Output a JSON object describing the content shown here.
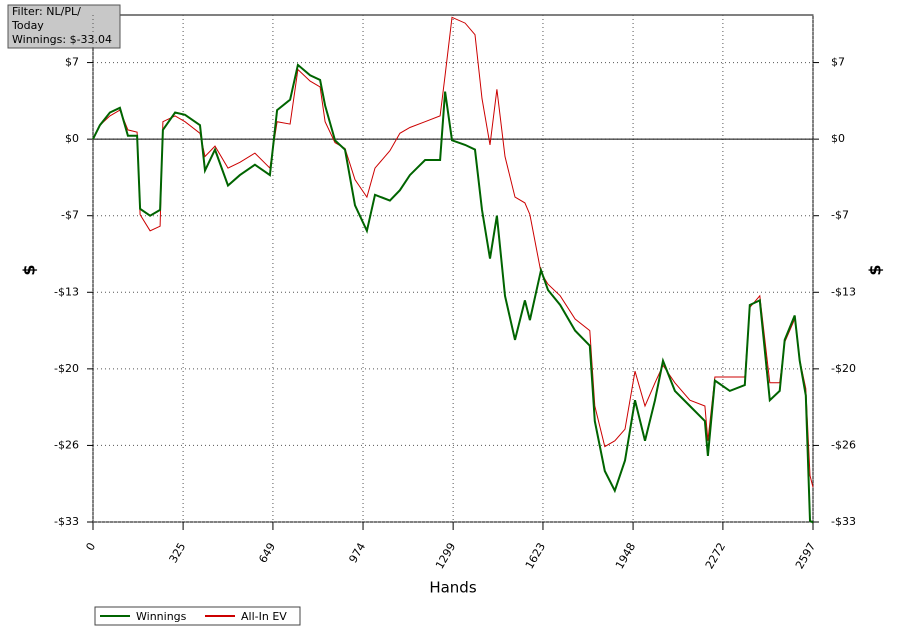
{
  "chart_data": {
    "type": "line",
    "annotations": [
      "Filter: NL/PL/",
      "Today",
      "Winnings: $-33.04"
    ],
    "xlabel": "Hands",
    "ylabel": "$",
    "x": [
      0,
      25,
      61,
      97,
      126,
      159,
      170,
      206,
      242,
      252,
      296,
      332,
      386,
      404,
      440,
      487,
      530,
      584,
      638,
      664,
      711,
      739,
      783,
      819,
      837,
      873,
      909,
      945,
      988,
      1017,
      1071,
      1107,
      1143,
      1198,
      1252,
      1270,
      1295,
      1342,
      1378,
      1403,
      1432,
      1457,
      1486,
      1522,
      1558,
      1576,
      1616,
      1641,
      1685,
      1739,
      1792,
      1810,
      1846,
      1882,
      1919,
      1955,
      1991,
      2027,
      2056,
      2099,
      2153,
      2207,
      2218,
      2243,
      2297,
      2351,
      2369,
      2405,
      2441,
      2477,
      2495,
      2531,
      2549,
      2571,
      2586,
      2597
    ],
    "series": [
      {
        "name": "Winnings",
        "color": "#006400",
        "values": [
          0,
          1.2,
          2.3,
          2.7,
          0.3,
          0.3,
          -6,
          -6.6,
          -6.1,
          0.8,
          2.3,
          2.1,
          1.2,
          -2.7,
          -0.9,
          -4,
          -3.1,
          -2.2,
          -3.1,
          2.5,
          3.4,
          6.4,
          5.5,
          5.1,
          2.9,
          -0.1,
          -0.9,
          -5.7,
          -7.9,
          -4.8,
          -5.3,
          -4.4,
          -3.1,
          -1.8,
          -1.8,
          4.1,
          -0.1,
          -0.5,
          -0.9,
          -6.1,
          -10.3,
          -6.6,
          -13.5,
          -17.3,
          -13.9,
          -15.6,
          -11.3,
          -13,
          -14.3,
          -16.5,
          -17.8,
          -24.3,
          -28.6,
          -30.3,
          -27.7,
          -22.5,
          -26,
          -22.5,
          -19.1,
          -21.7,
          -23,
          -24.3,
          -27.3,
          -20.8,
          -21.7,
          -21.2,
          -14.3,
          -13.9,
          -22.5,
          -21.7,
          -17.3,
          -15.2,
          -19.1,
          -22.1,
          -32.9,
          -33.04
        ]
      },
      {
        "name": "All-In EV",
        "color": "#cc0000",
        "values": [
          0,
          1.2,
          2.0,
          2.5,
          0.8,
          0.6,
          -6.5,
          -7.9,
          -7.5,
          1.5,
          2.0,
          1.5,
          0.5,
          -1.5,
          -0.6,
          -2.5,
          -2.0,
          -1.2,
          -2.5,
          1.5,
          1.3,
          6.0,
          5.0,
          4.5,
          1.5,
          -0.3,
          -0.8,
          -3.5,
          -5.0,
          -2.5,
          -1.0,
          0.5,
          1.0,
          1.5,
          2.0,
          5.5,
          10.5,
          10.0,
          9.0,
          3.5,
          -0.5,
          4.3,
          -1.5,
          -5.0,
          -5.5,
          -6.5,
          -11.5,
          -12.5,
          -13.5,
          -15.5,
          -16.5,
          -23.0,
          -26.5,
          -26.0,
          -25.0,
          -20.0,
          -23.0,
          -21.0,
          -19.5,
          -21.0,
          -22.5,
          -23.0,
          -26.0,
          -20.5,
          -20.5,
          -20.5,
          -14.5,
          -13.5,
          -21.0,
          -21.0,
          -17.5,
          -15.5,
          -19.0,
          -21.5,
          -29.0,
          -30.0
        ]
      }
    ],
    "xlim": [
      0,
      2597
    ],
    "xticks": [
      0,
      325,
      649,
      974,
      1299,
      1623,
      1948,
      2272,
      2597
    ],
    "ylim": [
      -33,
      10.7
    ],
    "yticks": [
      {
        "value": -33,
        "label": "-$33"
      },
      {
        "value": -26.4,
        "label": "-$26"
      },
      {
        "value": -19.8,
        "label": "-$20"
      },
      {
        "value": -13.2,
        "label": "-$13"
      },
      {
        "value": -6.6,
        "label": "-$7"
      },
      {
        "value": 0,
        "label": "$0"
      },
      {
        "value": 6.6,
        "label": "$7"
      }
    ],
    "grid": true,
    "legend": "bottom-left"
  }
}
